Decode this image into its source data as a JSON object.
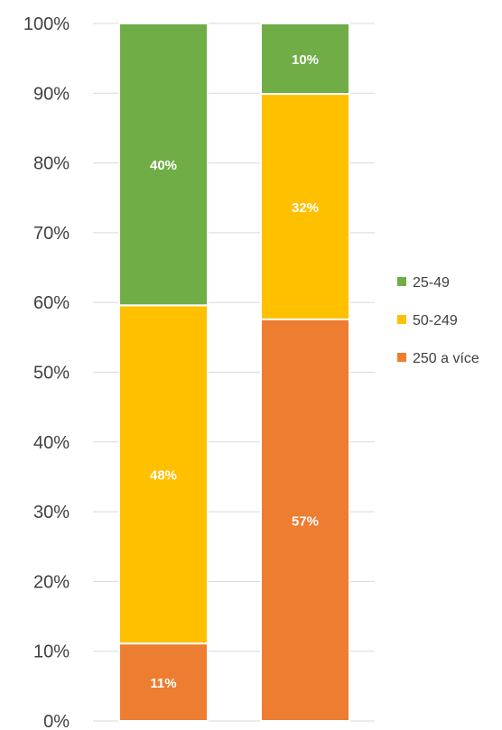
{
  "chart_data": {
    "type": "bar",
    "stacked": true,
    "percent_stacked": true,
    "categories": [
      "",
      ""
    ],
    "series": [
      {
        "name": "250 a více",
        "values": [
          11,
          57
        ],
        "labels": [
          "11%",
          "57%"
        ],
        "color": "#ED7D31"
      },
      {
        "name": "50-249",
        "values": [
          48,
          32
        ],
        "labels": [
          "48%",
          "32%"
        ],
        "color": "#FFC000"
      },
      {
        "name": "25-49",
        "values": [
          40,
          10
        ],
        "labels": [
          "40%",
          "10%"
        ],
        "color": "#70AD47"
      }
    ],
    "legend_order": [
      "25-49",
      "50-249",
      "250 a více"
    ],
    "ylim": [
      0,
      100
    ],
    "yticks": [
      "0%",
      "10%",
      "20%",
      "30%",
      "40%",
      "50%",
      "60%",
      "70%",
      "80%",
      "90%",
      "100%"
    ],
    "grid": true,
    "legend_position": "right",
    "title": "",
    "xlabel": "",
    "ylabel": ""
  }
}
